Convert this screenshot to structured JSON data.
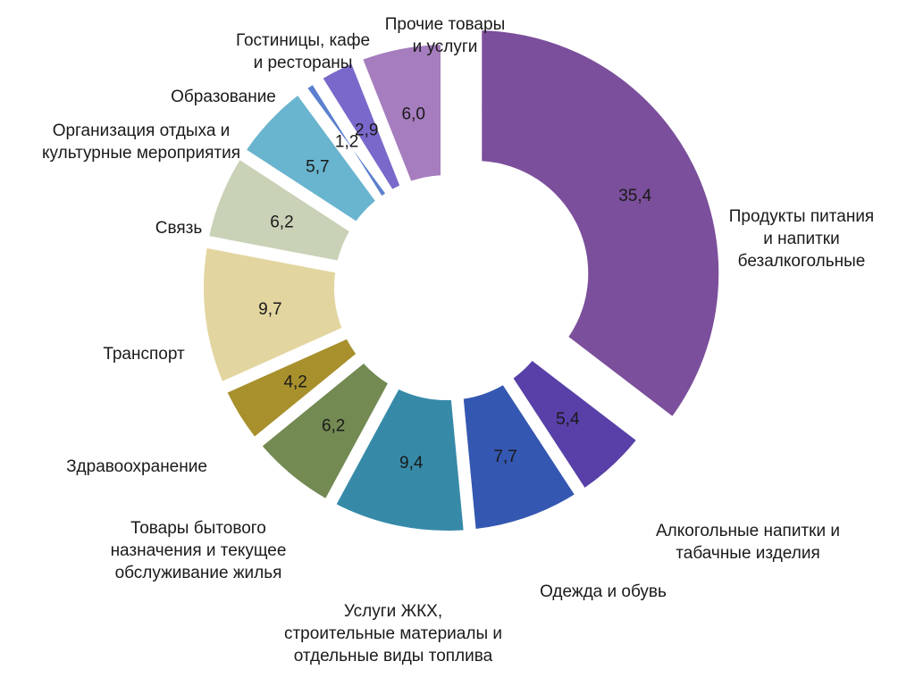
{
  "chart_data": {
    "type": "pie",
    "variant": "donut",
    "slices": [
      {
        "label": "Продукты питания и напитки безалкогольные",
        "value": 35.4,
        "value_label": "35,4",
        "color": "#7B4F9B"
      },
      {
        "label": "Алкогольные напитки и табачные изделия",
        "value": 5.4,
        "value_label": "5,4",
        "color": "#5840A8"
      },
      {
        "label": "Одежда и обувь",
        "value": 7.7,
        "value_label": "7,7",
        "color": "#3457B1"
      },
      {
        "label": "Услуги ЖКХ, строительные материалы и отдельные виды топлива",
        "value": 9.4,
        "value_label": "9,4",
        "color": "#368AA8"
      },
      {
        "label": "Товары бытового назначения и текущее обслуживание жилья",
        "value": 6.2,
        "value_label": "6,2",
        "color": "#738A53"
      },
      {
        "label": "Здравоохранение",
        "value": 4.2,
        "value_label": "4,2",
        "color": "#A8902D"
      },
      {
        "label": "Транспорт",
        "value": 9.7,
        "value_label": "9,7",
        "color": "#E3D59F"
      },
      {
        "label": "Связь",
        "value": 6.2,
        "value_label": "6,2",
        "color": "#C9D1B6"
      },
      {
        "label": "Организация отдыха и культурные мероприятия",
        "value": 5.7,
        "value_label": "5,7",
        "color": "#69B4CE"
      },
      {
        "label": "Образование",
        "value": 1.2,
        "value_label": "1,2",
        "color": "#5C7FCF"
      },
      {
        "label": "Гостиницы, кафе и рестораны",
        "value": 2.9,
        "value_label": "2,9",
        "color": "#7A68CB"
      },
      {
        "label": "Прочие товары и услуги",
        "value": 6.0,
        "value_label": "6,0",
        "color": "#A67DBF"
      }
    ]
  }
}
